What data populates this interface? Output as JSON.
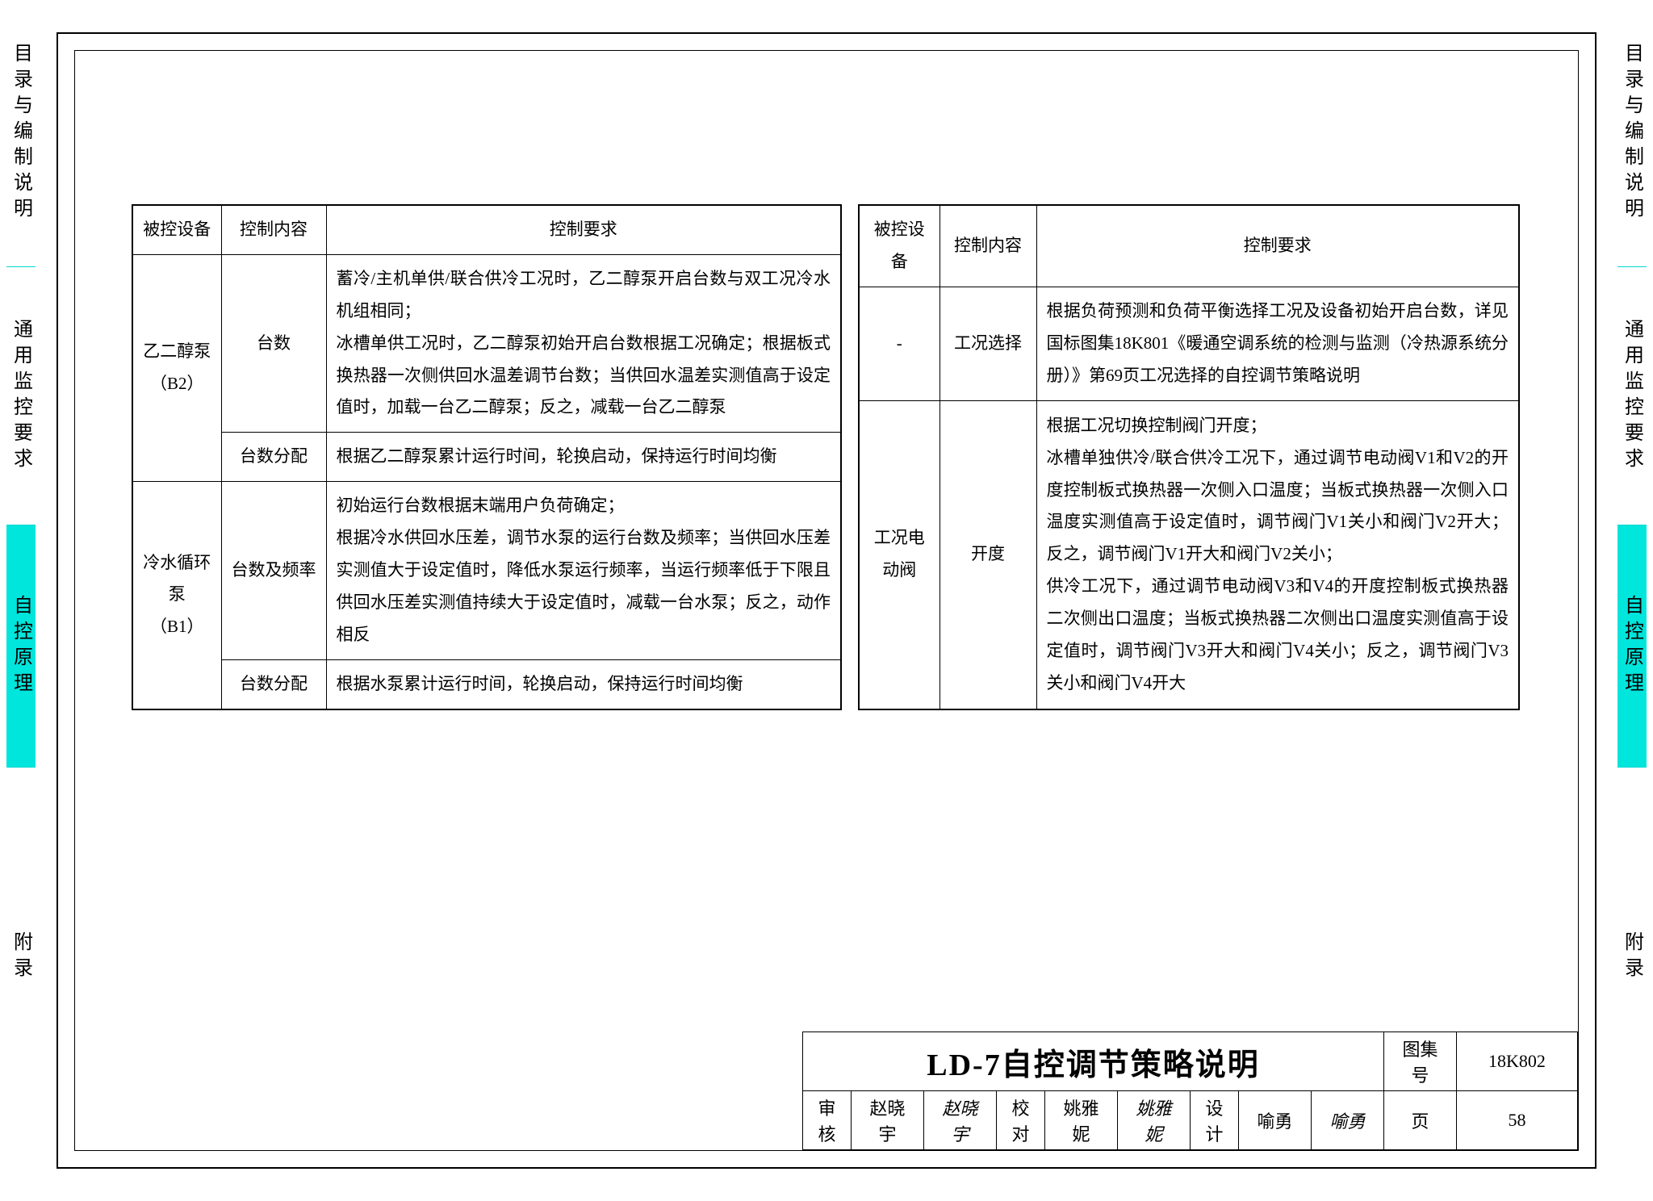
{
  "sideTabs": [
    {
      "label": "目录与编制说明",
      "active": false
    },
    {
      "label": "通用监控要求",
      "active": false
    },
    {
      "label": "自控原理",
      "active": true
    },
    {
      "label": "附录",
      "active": false
    }
  ],
  "header": {
    "c1": "被控设备",
    "c2": "控制内容",
    "c3": "控制要求"
  },
  "left": [
    {
      "dev": "乙二醇泵（B2）",
      "ctrl": "台数",
      "req": "蓄冷/主机单供/联合供冷工况时，乙二醇泵开启台数与双工况冷水机组相同；\n冰槽单供工况时，乙二醇泵初始开启台数根据工况确定；根据板式换热器一次侧供回水温差调节台数；当供回水温差实测值高于设定值时，加载一台乙二醇泵；反之，减载一台乙二醇泵"
    },
    {
      "dev": "",
      "ctrl": "台数分配",
      "req": "根据乙二醇泵累计运行时间，轮换启动，保持运行时间均衡"
    },
    {
      "dev": "冷水循环泵（B1）",
      "ctrl": "台数及频率",
      "req": "初始运行台数根据末端用户负荷确定；\n根据冷水供回水压差，调节水泵的运行台数及频率；当供回水压差实测值大于设定值时，降低水泵运行频率，当运行频率低于下限且供回水压差实测值持续大于设定值时，减载一台水泵；反之，动作相反"
    },
    {
      "dev": "",
      "ctrl": "台数分配",
      "req": "根据水泵累计运行时间，轮换启动，保持运行时间均衡"
    }
  ],
  "right": [
    {
      "dev": "-",
      "ctrl": "工况选择",
      "req": "根据负荷预测和负荷平衡选择工况及设备初始开启台数，详见国标图集18K801《暖通空调系统的检测与监测（冷热源系统分册）》第69页工况选择的自控调节策略说明"
    },
    {
      "dev": "工况电动阀",
      "ctrl": "开度",
      "req": "根据工况切换控制阀门开度；\n冰槽单独供冷/联合供冷工况下，通过调节电动阀V1和V2的开度控制板式换热器一次侧入口温度；当板式换热器一次侧入口温度实测值高于设定值时，调节阀门V1关小和阀门V2开大；反之，调节阀门V1开大和阀门V2关小；\n供冷工况下，通过调节电动阀V3和V4的开度控制板式换热器二次侧出口温度；当板式换热器二次侧出口温度实测值高于设定值时，调节阀门V3开大和阀门V4关小；反之，调节阀门V3关小和阀门V4开大"
    }
  ],
  "titleblock": {
    "title": "LD-7自控调节策略说明",
    "setLabel": "图集号",
    "setNo": "18K802",
    "review": "审核",
    "reviewer": "赵晓宇",
    "reviewerSig": "赵晓宇",
    "check": "校对",
    "checker": "姚雅妮",
    "checkerSig": "姚雅妮",
    "design": "设计",
    "designer": "喻勇",
    "designerSig": "喻勇",
    "pageLabel": "页",
    "pageNo": "58"
  },
  "colors": {
    "accent": "#00e5dc",
    "line": "#000000",
    "bg": "#ffffff"
  }
}
